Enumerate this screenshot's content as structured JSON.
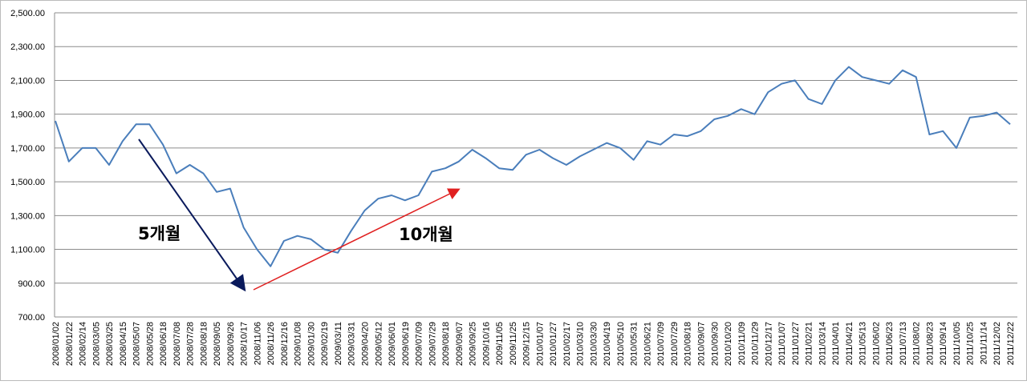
{
  "chart_data": {
    "type": "line",
    "categories": [
      "2008/01/02",
      "2008/01/22",
      "2008/02/14",
      "2008/03/05",
      "2008/03/25",
      "2008/04/15",
      "2008/05/07",
      "2008/05/28",
      "2008/06/18",
      "2008/07/08",
      "2008/07/28",
      "2008/08/18",
      "2008/09/05",
      "2008/09/26",
      "2008/10/17",
      "2008/11/06",
      "2008/11/26",
      "2008/12/16",
      "2009/01/08",
      "2009/01/30",
      "2009/02/19",
      "2009/03/11",
      "2009/03/31",
      "2009/04/20",
      "2009/05/12",
      "2009/06/01",
      "2009/06/19",
      "2009/07/09",
      "2009/07/29",
      "2009/08/18",
      "2009/09/07",
      "2009/09/25",
      "2009/10/16",
      "2009/11/05",
      "2009/11/25",
      "2009/12/15",
      "2010/01/07",
      "2010/01/27",
      "2010/02/17",
      "2010/03/10",
      "2010/03/30",
      "2010/04/19",
      "2010/05/10",
      "2010/05/31",
      "2010/06/21",
      "2010/07/09",
      "2010/07/29",
      "2010/08/18",
      "2010/09/07",
      "2010/09/30",
      "2010/10/20",
      "2010/11/09",
      "2010/11/29",
      "2010/12/17",
      "2011/01/07",
      "2011/01/27",
      "2011/02/21",
      "2011/03/14",
      "2011/04/01",
      "2011/04/21",
      "2011/05/13",
      "2011/06/02",
      "2011/06/23",
      "2011/07/13",
      "2011/08/02",
      "2011/08/23",
      "2011/09/14",
      "2011/10/05",
      "2011/10/25",
      "2011/11/14",
      "2011/12/02",
      "2011/12/22"
    ],
    "values": [
      1860,
      1620,
      1700,
      1700,
      1600,
      1740,
      1840,
      1840,
      1720,
      1550,
      1600,
      1550,
      1440,
      1460,
      1230,
      1100,
      1000,
      1150,
      1180,
      1160,
      1100,
      1080,
      1210,
      1330,
      1400,
      1420,
      1390,
      1420,
      1560,
      1580,
      1620,
      1690,
      1640,
      1580,
      1570,
      1660,
      1690,
      1640,
      1600,
      1650,
      1690,
      1730,
      1700,
      1630,
      1740,
      1720,
      1780,
      1770,
      1800,
      1870,
      1890,
      1930,
      1900,
      2030,
      2080,
      2100,
      1990,
      1960,
      2100,
      2180,
      2120,
      2100,
      2080,
      2160,
      2120,
      1780,
      1800,
      1700,
      1880,
      1890,
      1910,
      1840
    ],
    "color": "#4a7ebb",
    "ylim": [
      700,
      2500
    ],
    "yticks": [
      {
        "value": 700,
        "label": "700.00"
      },
      {
        "value": 900,
        "label": "900.00"
      },
      {
        "value": 1100,
        "label": "1,100.00"
      },
      {
        "value": 1300,
        "label": "1,300.00"
      },
      {
        "value": 1500,
        "label": "1,500.00"
      },
      {
        "value": 1700,
        "label": "1,700.00"
      },
      {
        "value": 1900,
        "label": "1,900.00"
      },
      {
        "value": 2100,
        "label": "2,100.00"
      },
      {
        "value": 2300,
        "label": "2,300.00"
      },
      {
        "value": 2500,
        "label": "2,500.00"
      }
    ],
    "grid": true,
    "annotations": [
      "5개월",
      "10개월"
    ]
  }
}
